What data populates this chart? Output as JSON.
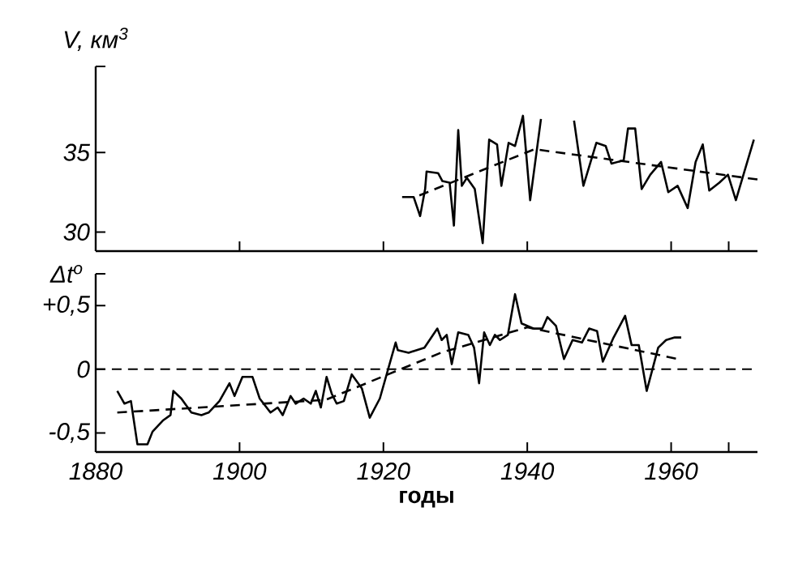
{
  "chart_data": [
    {
      "type": "line",
      "ylabel": "V, км$^{3}$",
      "xlim": [
        1880,
        1972
      ],
      "ylim": [
        28.8,
        40.4
      ],
      "xticks": [
        1880,
        1900,
        1920,
        1940,
        1960,
        {
          "value": 1968,
          "label": null
        }
      ],
      "yticks": [
        30,
        35,
        {
          "value": 40.4,
          "label": null
        }
      ],
      "tick_labels": "y",
      "marker": "none",
      "series": [
        {
          "color": "#000000",
          "line_style": "solid",
          "x": [
            1922.6,
            1924.2,
            1925.1,
            1925.8,
            1926.0,
            1927.6,
            1928.2,
            1929.2,
            1929.8,
            1930.4,
            1930.9,
            1931.6,
            1932.7,
            1933.8,
            1934.7,
            1935.8,
            1936.4,
            1937.4,
            1938.3,
            1939.4,
            1940.4,
            1941.9,
            1944.0,
            1946.5,
            1947.8,
            1949.6,
            1950.9,
            1951.7,
            1953.4,
            1954.0,
            1955.0,
            1955.9,
            1957.1,
            1958.6,
            1959.6,
            1960.9,
            1962.3,
            1963.4,
            1964.4,
            1965.3,
            1966.7,
            1967.9,
            1969.0,
            1971.5
          ],
          "values": [
            32.2,
            32.2,
            31.0,
            32.7,
            33.8,
            33.7,
            33.2,
            33.1,
            30.4,
            36.4,
            32.9,
            33.4,
            32.7,
            29.3,
            35.8,
            35.5,
            32.9,
            35.6,
            35.4,
            37.3,
            32.0,
            37.1,
            null,
            37.0,
            32.9,
            35.6,
            35.4,
            34.3,
            34.5,
            36.5,
            36.5,
            32.7,
            33.6,
            34.4,
            32.5,
            32.9,
            31.5,
            34.4,
            35.5,
            32.6,
            33.1,
            33.6,
            32.0,
            35.8
          ]
        },
        {
          "color": "#000000",
          "line_style": "dashed",
          "x": [
            1925,
            1941,
            1972
          ],
          "values": [
            32.3,
            35.2,
            33.3
          ]
        }
      ]
    },
    {
      "type": "line",
      "ylabel": "Δt$^{o}$",
      "xlabel": "годы",
      "xlim": [
        1880,
        1972
      ],
      "ylim": [
        -0.65,
        0.75
      ],
      "xticks": [
        1880,
        1900,
        1920,
        1940,
        1960,
        {
          "value": 1968,
          "label": null
        }
      ],
      "yticks": [
        {
          "value": -0.5,
          "label": "-0,5"
        },
        0,
        {
          "value": 0.5,
          "label": "+0,5"
        },
        {
          "value": 0.75,
          "label": null
        }
      ],
      "marker": "none",
      "ref_lines": [
        {
          "axis": "y",
          "value": 0,
          "line_style": "dashed"
        }
      ],
      "series": [
        {
          "color": "#000000",
          "line_style": "solid",
          "x": [
            1883.0,
            1884.0,
            1884.9,
            1885.8,
            1887.2,
            1887.9,
            1889.4,
            1890.4,
            1890.8,
            1891.9,
            1893.3,
            1894.7,
            1895.7,
            1897.2,
            1898.6,
            1899.3,
            1900.4,
            1901.8,
            1902.8,
            1904.3,
            1905.3,
            1906.0,
            1907.1,
            1907.8,
            1908.9,
            1909.9,
            1910.6,
            1911.3,
            1912.1,
            1912.8,
            1913.5,
            1914.5,
            1915.6,
            1917.0,
            1918.1,
            1919.5,
            1921.7,
            1922.0,
            1923.5,
            1925.7,
            1927.5,
            1928.1,
            1928.8,
            1929.5,
            1930.4,
            1931.8,
            1932.6,
            1933.3,
            1934.0,
            1934.8,
            1935.5,
            1936.2,
            1937.3,
            1938.3,
            1939.2,
            1940.9,
            1942.1,
            1942.8,
            1944.0,
            1945.1,
            1946.3,
            1947.6,
            1948.6,
            1949.7,
            1950.5,
            1952.0,
            1953.6,
            1954.5,
            1955.5,
            1956.6,
            1958.2,
            1959.3,
            1960.5,
            1961.4
          ],
          "values": [
            -0.17,
            -0.27,
            -0.25,
            -0.59,
            -0.59,
            -0.49,
            -0.4,
            -0.36,
            -0.17,
            -0.23,
            -0.34,
            -0.36,
            -0.34,
            -0.25,
            -0.11,
            -0.21,
            -0.06,
            -0.06,
            -0.23,
            -0.34,
            -0.3,
            -0.36,
            -0.21,
            -0.27,
            -0.23,
            -0.27,
            -0.17,
            -0.3,
            -0.06,
            -0.19,
            -0.27,
            -0.25,
            -0.04,
            -0.15,
            -0.38,
            -0.23,
            0.21,
            0.15,
            0.13,
            0.17,
            0.32,
            0.23,
            0.27,
            0.04,
            0.29,
            0.27,
            0.17,
            -0.11,
            0.29,
            0.19,
            0.27,
            0.23,
            0.27,
            0.59,
            0.36,
            0.32,
            0.32,
            0.41,
            0.34,
            0.08,
            0.23,
            0.21,
            0.32,
            0.3,
            0.06,
            0.25,
            0.42,
            0.19,
            0.19,
            -0.17,
            0.17,
            0.23,
            0.25,
            0.25
          ]
        },
        {
          "color": "#000000",
          "line_style": "dashed",
          "x": [
            1883,
            1912,
            1928,
            1940,
            1961
          ],
          "values": [
            -0.34,
            -0.24,
            0.13,
            0.33,
            0.08
          ]
        }
      ]
    }
  ]
}
